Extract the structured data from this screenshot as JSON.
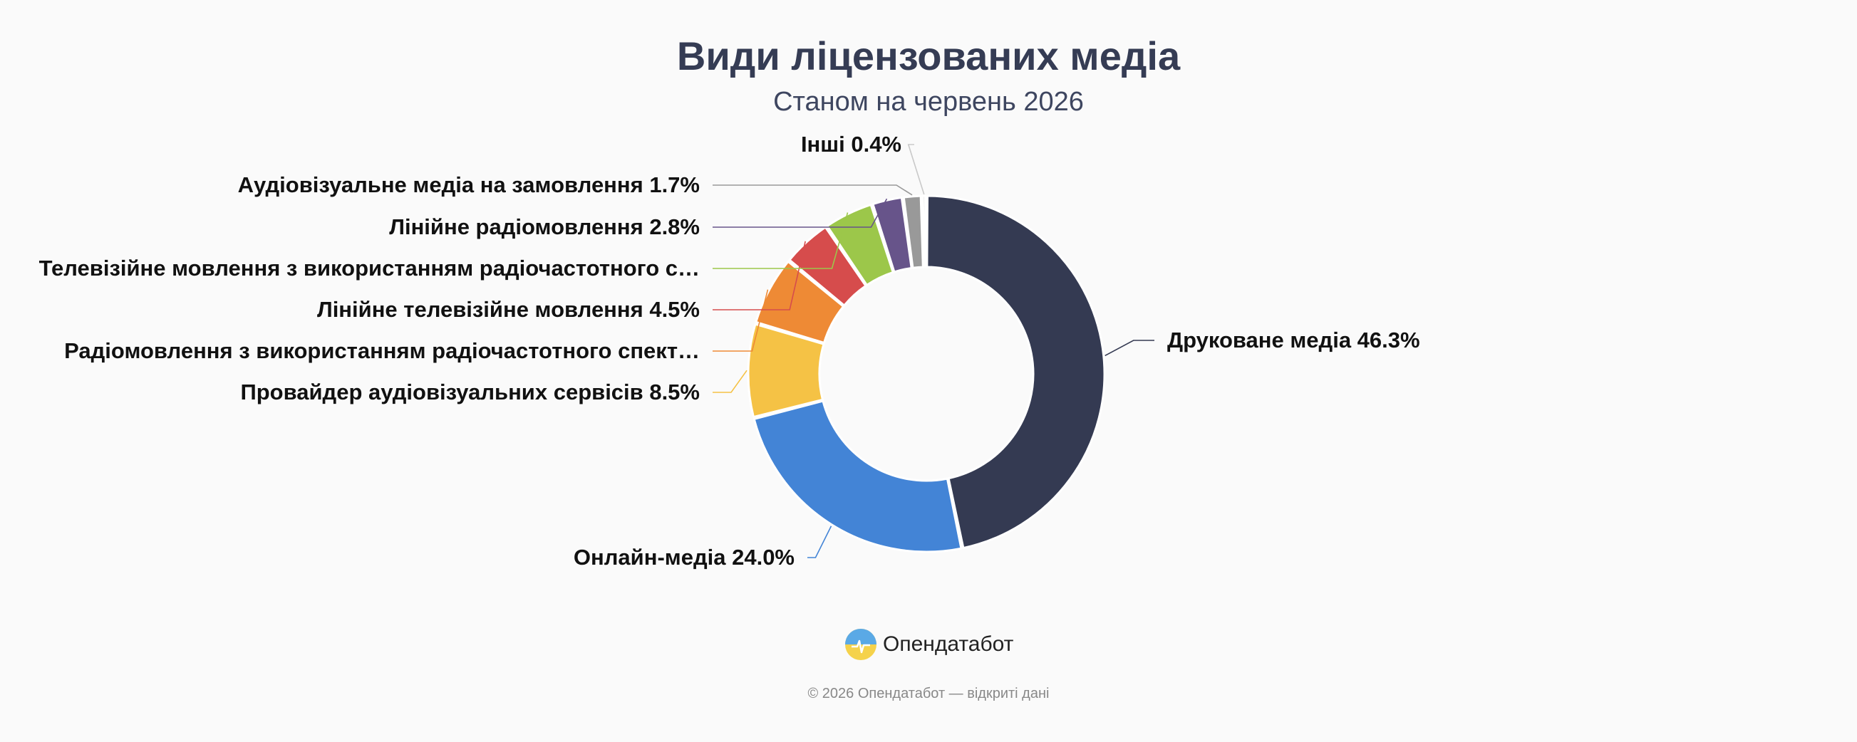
{
  "title": "Види ліцензованих медіа",
  "subtitle": "Станом на червень 2026",
  "brand": {
    "name": "Опендатабот",
    "logo_icon": "opendatabot-logo-icon"
  },
  "footer": "© 2026 Опендатабот — відкриті дані",
  "chart_data": {
    "type": "pie",
    "title": "Види ліцензованих медіа",
    "subtitle": "Станом на червень 2026",
    "donut": true,
    "slices": [
      {
        "label": "Друковане медіа 46.3%",
        "name": "Друковане медіа",
        "value": 46.3,
        "color": "#343a52"
      },
      {
        "label": "Онлайн-медіа 24.0%",
        "name": "Онлайн-медіа",
        "value": 24.0,
        "color": "#4384d6"
      },
      {
        "label": "Провайдер аудіовізуальних сервісів 8.5%",
        "name": "Провайдер аудіовізуальних сервісів",
        "value": 8.5,
        "color": "#f5c245"
      },
      {
        "label": "Радіомовлення з використанням радіочастотного спект…",
        "name": "Радіомовлення з використанням радіочастотного спектра",
        "value": 6.3,
        "color": "#ee8a35"
      },
      {
        "label": "Лінійне телевізійне мовлення 4.5%",
        "name": "Лінійне телевізійне мовлення",
        "value": 4.5,
        "color": "#d64c4c"
      },
      {
        "label": "Телевізійне мовлення з використанням радіочастотного с…",
        "name": "Телевізійне мовлення з використанням радіочастотного спектра",
        "value": 4.5,
        "color": "#9cc74a"
      },
      {
        "label": "Лінійне радіомовлення 2.8%",
        "name": "Лінійне радіомовлення",
        "value": 2.8,
        "color": "#67548a"
      },
      {
        "label": "Аудіовізуальне медіа на замовлення 1.7%",
        "name": "Аудіовізуальне медіа на замовлення",
        "value": 1.7,
        "color": "#999999"
      },
      {
        "label": "Інші 0.4%",
        "name": "Інші",
        "value": 0.4,
        "color": "#c9c9c9"
      }
    ]
  }
}
